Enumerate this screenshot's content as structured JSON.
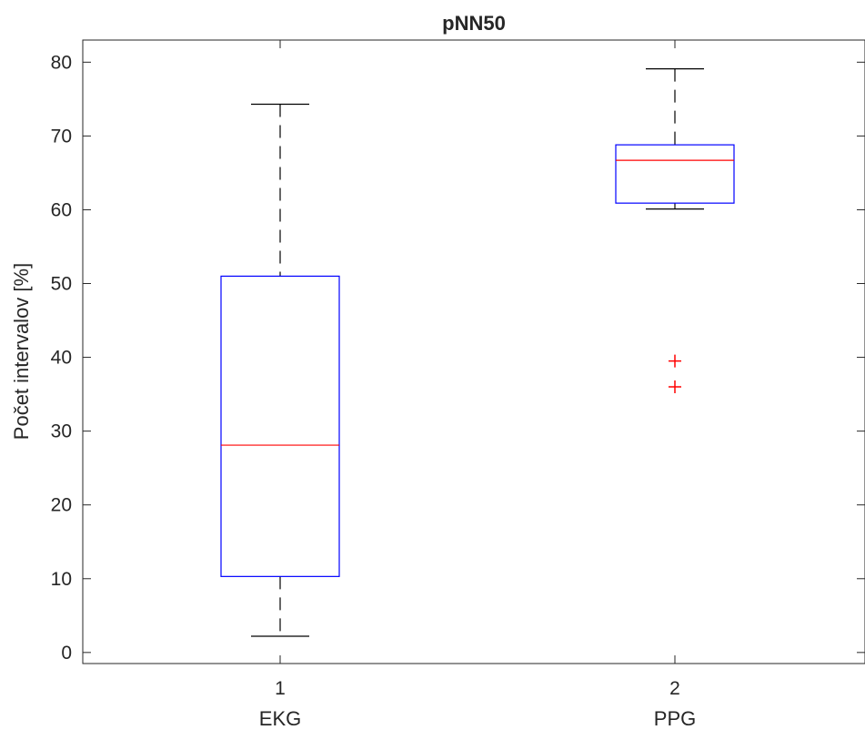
{
  "chart_data": {
    "type": "boxplot",
    "title": "pNN50",
    "xlabel": "",
    "ylabel": "Počet intervalov [%]",
    "ylim": [
      -1.5,
      83
    ],
    "yticks": [
      0,
      10,
      20,
      30,
      40,
      50,
      60,
      70,
      80
    ],
    "xticks": [
      "1",
      "2"
    ],
    "grid": false,
    "box_color": "#0000ff",
    "median_color": "#ff0000",
    "whisker_color": "#000000",
    "outlier_color": "#ff0000",
    "groups": [
      {
        "tick": "1",
        "name": "EKG",
        "whisker_low": 2.2,
        "q1": 10.3,
        "median": 28.1,
        "q3": 51.0,
        "whisker_high": 74.3,
        "outliers": []
      },
      {
        "tick": "2",
        "name": "PPG",
        "whisker_low": 60.1,
        "q1": 60.9,
        "median": 66.7,
        "q3": 68.8,
        "whisker_high": 79.1,
        "outliers": [
          39.5,
          36.0
        ]
      }
    ]
  }
}
